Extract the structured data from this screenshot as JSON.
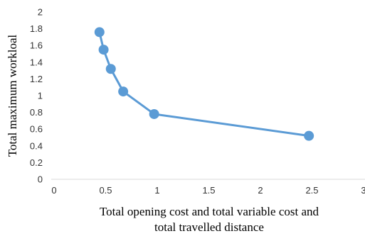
{
  "chart_data": {
    "type": "line",
    "title": "",
    "xlabel": "Total opening cost and total variable cost and total travelled distance",
    "xlabel_lines": [
      "Total opening cost and total variable cost and",
      "total travelled distance"
    ],
    "ylabel": "Total maximum workloal",
    "xlim": [
      0,
      3
    ],
    "ylim": [
      0,
      2
    ],
    "x_ticks": [
      "0",
      "0.5",
      "1",
      "1.5",
      "2",
      "2.5",
      "3"
    ],
    "y_ticks": [
      "0",
      "0.2",
      "0.4",
      "0.6",
      "0.8",
      "1",
      "1.2",
      "1.4",
      "1.6",
      "1.8",
      "2"
    ],
    "grid": false,
    "legend": "none",
    "series": [
      {
        "color": "#5b9bd5",
        "points": [
          {
            "x": 0.44,
            "y": 1.76
          },
          {
            "x": 0.48,
            "y": 1.55
          },
          {
            "x": 0.55,
            "y": 1.32
          },
          {
            "x": 0.67,
            "y": 1.05
          },
          {
            "x": 0.97,
            "y": 0.78
          },
          {
            "x": 2.47,
            "y": 0.52
          }
        ]
      }
    ]
  }
}
